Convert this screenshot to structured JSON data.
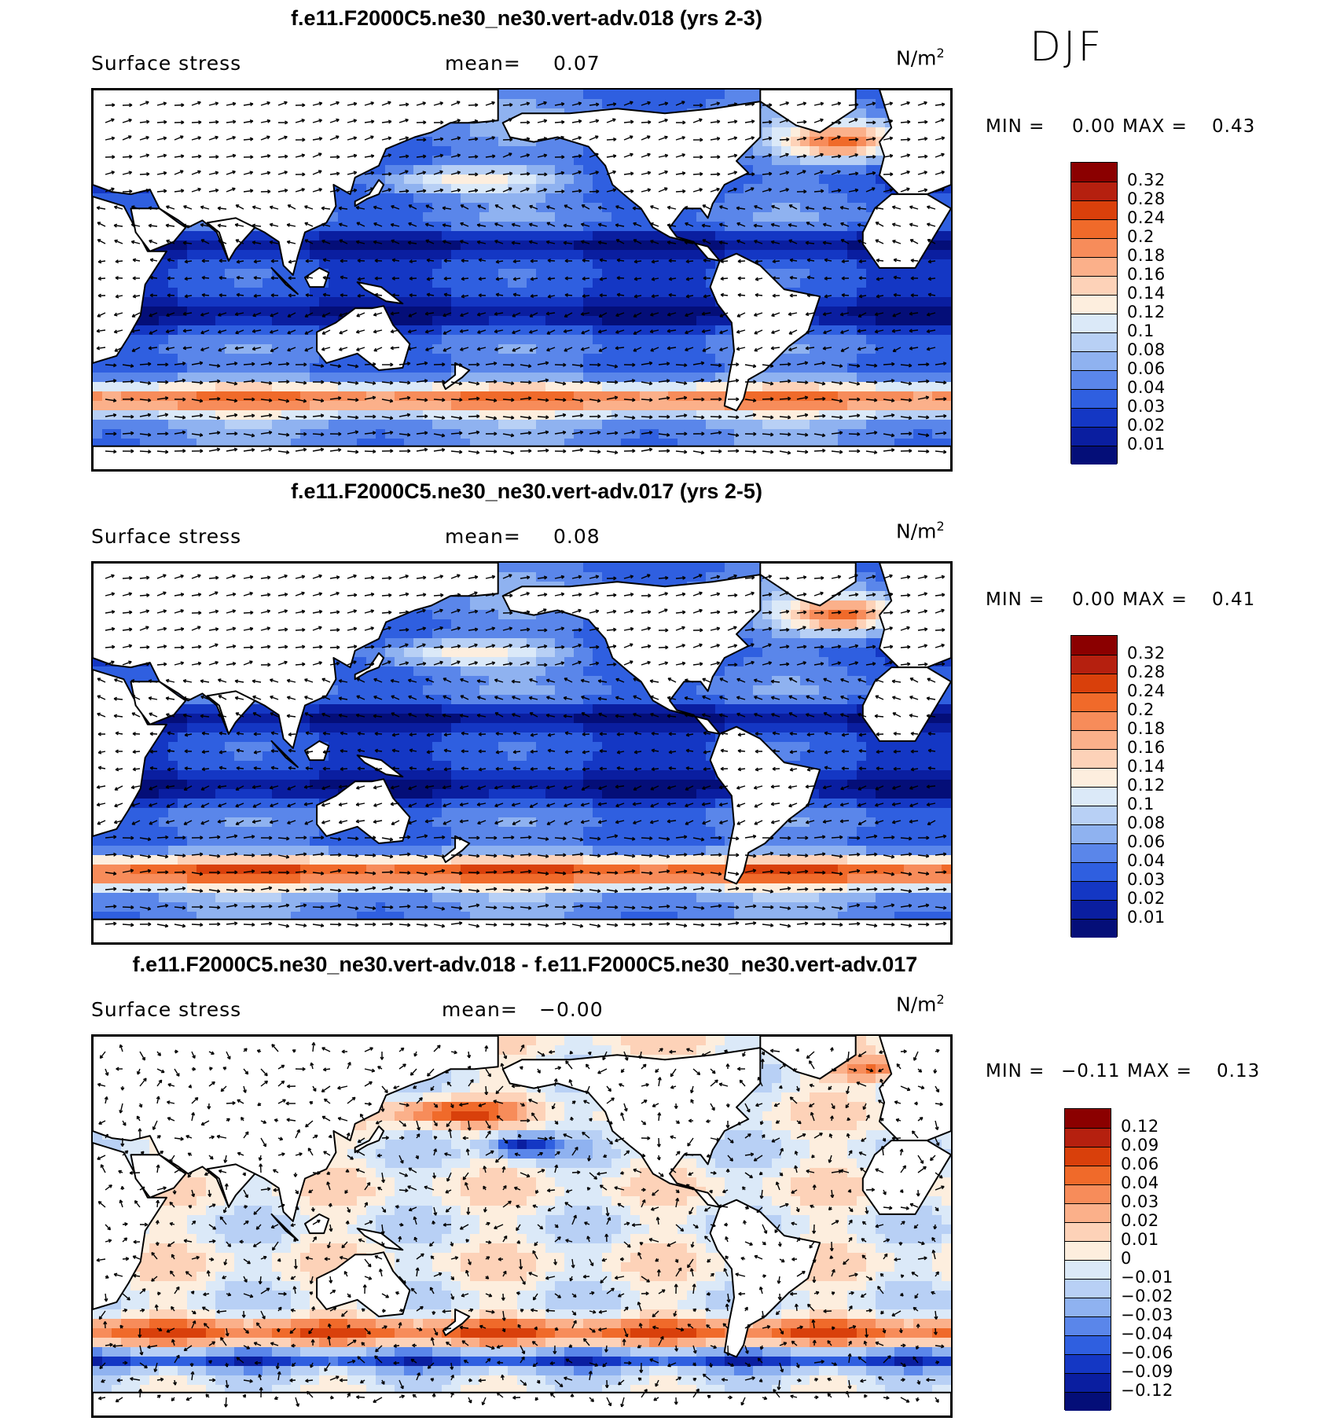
{
  "season": "DJF",
  "panels": [
    {
      "title": "f.e11.F2000C5.ne30_ne30.vert-adv.018 (yrs 2-3)",
      "variable": "Surface stress",
      "mean_label": "mean=",
      "mean_value": "0.07",
      "units": "N/m",
      "units_exp": "2",
      "min_label": "MIN =",
      "min_value": "0.00",
      "max_label": "MAX =",
      "max_value": "0.43",
      "field": "total",
      "colorbar": {
        "labels": [
          "0.32",
          "0.28",
          "0.24",
          "0.2",
          "0.18",
          "0.16",
          "0.14",
          "0.12",
          "0.1",
          "0.08",
          "0.06",
          "0.04",
          "0.03",
          "0.02",
          "0.01"
        ],
        "colors": [
          "#8b0000",
          "#b5200f",
          "#d9400b",
          "#f06a2a",
          "#f78c5a",
          "#fbb08a",
          "#fdd2b8",
          "#fdeede",
          "#dbe9f8",
          "#b8d0f5",
          "#8fb2f0",
          "#5a86ea",
          "#2f5fe0",
          "#1437c4",
          "#0a1ea0",
          "#040e78"
        ]
      }
    },
    {
      "title": "f.e11.F2000C5.ne30_ne30.vert-adv.017 (yrs 2-5)",
      "variable": "Surface stress",
      "mean_label": "mean=",
      "mean_value": "0.08",
      "units": "N/m",
      "units_exp": "2",
      "min_label": "MIN =",
      "min_value": "0.00",
      "max_label": "MAX =",
      "max_value": "0.41",
      "field": "total",
      "colorbar": {
        "labels": [
          "0.32",
          "0.28",
          "0.24",
          "0.2",
          "0.18",
          "0.16",
          "0.14",
          "0.12",
          "0.1",
          "0.08",
          "0.06",
          "0.04",
          "0.03",
          "0.02",
          "0.01"
        ],
        "colors": [
          "#8b0000",
          "#b5200f",
          "#d9400b",
          "#f06a2a",
          "#f78c5a",
          "#fbb08a",
          "#fdd2b8",
          "#fdeede",
          "#dbe9f8",
          "#b8d0f5",
          "#8fb2f0",
          "#5a86ea",
          "#2f5fe0",
          "#1437c4",
          "#0a1ea0",
          "#040e78"
        ]
      }
    },
    {
      "title": "f.e11.F2000C5.ne30_ne30.vert-adv.018 - f.e11.F2000C5.ne30_ne30.vert-adv.017",
      "variable": "Surface stress",
      "mean_label": "mean=",
      "mean_value": "−0.00",
      "units": "N/m",
      "units_exp": "2",
      "min_label": "MIN =",
      "min_value": "−0.11",
      "max_label": "MAX =",
      "max_value": "0.13",
      "field": "diff",
      "colorbar": {
        "labels": [
          "0.12",
          "0.09",
          "0.06",
          "0.04",
          "0.03",
          "0.02",
          "0.01",
          "0",
          "−0.01",
          "−0.02",
          "−0.03",
          "−0.04",
          "−0.06",
          "−0.09",
          "−0.12"
        ],
        "colors": [
          "#8b0000",
          "#b5200f",
          "#d9400b",
          "#f06a2a",
          "#f78c5a",
          "#fbb08a",
          "#fdd2b8",
          "#fdeede",
          "#dbe9f8",
          "#b8d0f5",
          "#8fb2f0",
          "#5a86ea",
          "#2f5fe0",
          "#1437c4",
          "#0a1ea0",
          "#040e78"
        ]
      }
    }
  ]
}
